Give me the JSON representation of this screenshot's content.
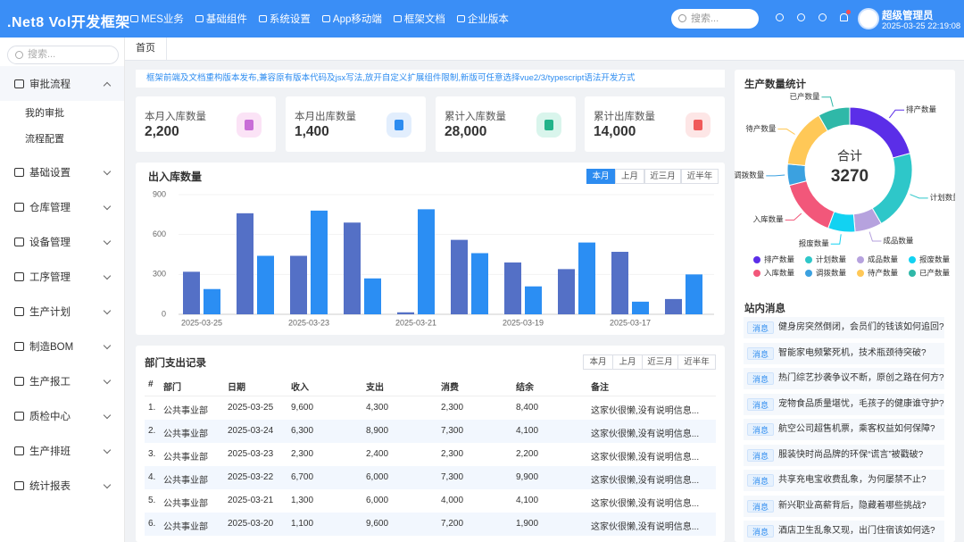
{
  "header": {
    "logo": ".Net8 Vol开发框架",
    "nav": [
      "MES业务",
      "基础组件",
      "系统设置",
      "App移动端",
      "框架文档",
      "企业版本"
    ],
    "search": "搜索...",
    "user": "超级管理员",
    "time": "2025-03-25 22:19:08"
  },
  "sidebar": {
    "search": "搜索...",
    "menu": [
      {
        "label": "审批流程",
        "children": [
          "我的审批",
          "流程配置"
        ]
      },
      {
        "label": "基础设置"
      },
      {
        "label": "仓库管理"
      },
      {
        "label": "设备管理"
      },
      {
        "label": "工序管理"
      },
      {
        "label": "生产计划"
      },
      {
        "label": "制造BOM"
      },
      {
        "label": "生产报工"
      },
      {
        "label": "质检中心"
      },
      {
        "label": "生产排班"
      },
      {
        "label": "统计报表"
      }
    ]
  },
  "tabs": [
    "首页"
  ],
  "notice": "框架前端及文档重构版本发布,兼容原有版本代码及jsx写法,放开自定义扩展组件限制,新版可任意选择vue2/3/typescript语法开发方式",
  "stats": [
    {
      "label": "本月入库数量",
      "value": "2,200"
    },
    {
      "label": "本月出库数量",
      "value": "1,400"
    },
    {
      "label": "累计入库数量",
      "value": "28,000"
    },
    {
      "label": "累计出库数量",
      "value": "14,000"
    }
  ],
  "chart_data": [
    {
      "type": "bar",
      "title": "出入库数量",
      "buttons": [
        "本月",
        "上月",
        "近三月",
        "近半年"
      ],
      "categories": [
        "2025-03-25",
        null,
        "2025-03-23",
        null,
        "2025-03-21",
        null,
        "2025-03-19",
        null,
        "2025-03-17",
        null
      ],
      "series": [
        {
          "color": "#5470c6",
          "values": [
            320,
            760,
            440,
            690,
            15,
            560,
            390,
            340,
            470,
            115
          ]
        },
        {
          "color": "#2b8ef3",
          "values": [
            190,
            440,
            780,
            270,
            790,
            460,
            210,
            540,
            95,
            300
          ]
        }
      ],
      "ylim": [
        0,
        900
      ],
      "yticks": [
        0,
        300,
        600,
        900
      ],
      "grid": true
    },
    {
      "type": "pie",
      "title": "生产数量统计",
      "center_label": "合计",
      "total": "3270",
      "categories": [
        "排产数量",
        "计划数量",
        "成品数量",
        "报废数量",
        "入库数量",
        "调拨数量",
        "待产数量",
        "已产数量"
      ],
      "values": [
        680,
        680,
        230,
        230,
        500,
        180,
        500,
        270
      ],
      "colors": [
        "#5b2ee8",
        "#2ec7c9",
        "#b6a2de",
        "#12d2f2",
        "#f2577a",
        "#3ba1e0",
        "#ffc857",
        "#2fb8a8"
      ]
    }
  ],
  "table": {
    "title": "部门支出记录",
    "buttons": [
      "本月",
      "上月",
      "近三月",
      "近半年"
    ],
    "columns": [
      "#",
      "部门",
      "日期",
      "收入",
      "支出",
      "消费",
      "结余",
      "备注"
    ],
    "rows": [
      [
        "1.",
        "公共事业部",
        "2025-03-25",
        "9,600",
        "4,300",
        "2,300",
        "8,400",
        "这家伙很懒,没有说明信息..."
      ],
      [
        "2.",
        "公共事业部",
        "2025-03-24",
        "6,300",
        "8,900",
        "7,300",
        "4,100",
        "这家伙很懒,没有说明信息..."
      ],
      [
        "3.",
        "公共事业部",
        "2025-03-23",
        "2,300",
        "2,400",
        "2,300",
        "2,200",
        "这家伙很懒,没有说明信息..."
      ],
      [
        "4.",
        "公共事业部",
        "2025-03-22",
        "6,700",
        "6,000",
        "7,300",
        "9,900",
        "这家伙很懒,没有说明信息..."
      ],
      [
        "5.",
        "公共事业部",
        "2025-03-21",
        "1,300",
        "6,000",
        "4,000",
        "4,100",
        "这家伙很懒,没有说明信息..."
      ],
      [
        "6.",
        "公共事业部",
        "2025-03-20",
        "1,100",
        "9,600",
        "7,200",
        "1,900",
        "这家伙很懒,没有说明信息..."
      ]
    ]
  },
  "messages": {
    "title": "站内消息",
    "tag": "消息",
    "items": [
      "健身房突然倒闭，会员们的钱该如何追回?",
      "智能家电频繁死机，技术瓶颈待突破?",
      "热门综艺抄袭争议不断，原创之路在何方?",
      "宠物食品质量堪忧，毛孩子的健康谁守护?",
      "航空公司超售机票，乘客权益如何保障?",
      "服装快时尚品牌的环保“谎言”被戳破?",
      "共享充电宝收费乱象，为何屡禁不止?",
      "新兴职业高薪背后，隐藏着哪些挑战?",
      "酒店卫生乱象又现，出门住宿该如何选?"
    ]
  }
}
